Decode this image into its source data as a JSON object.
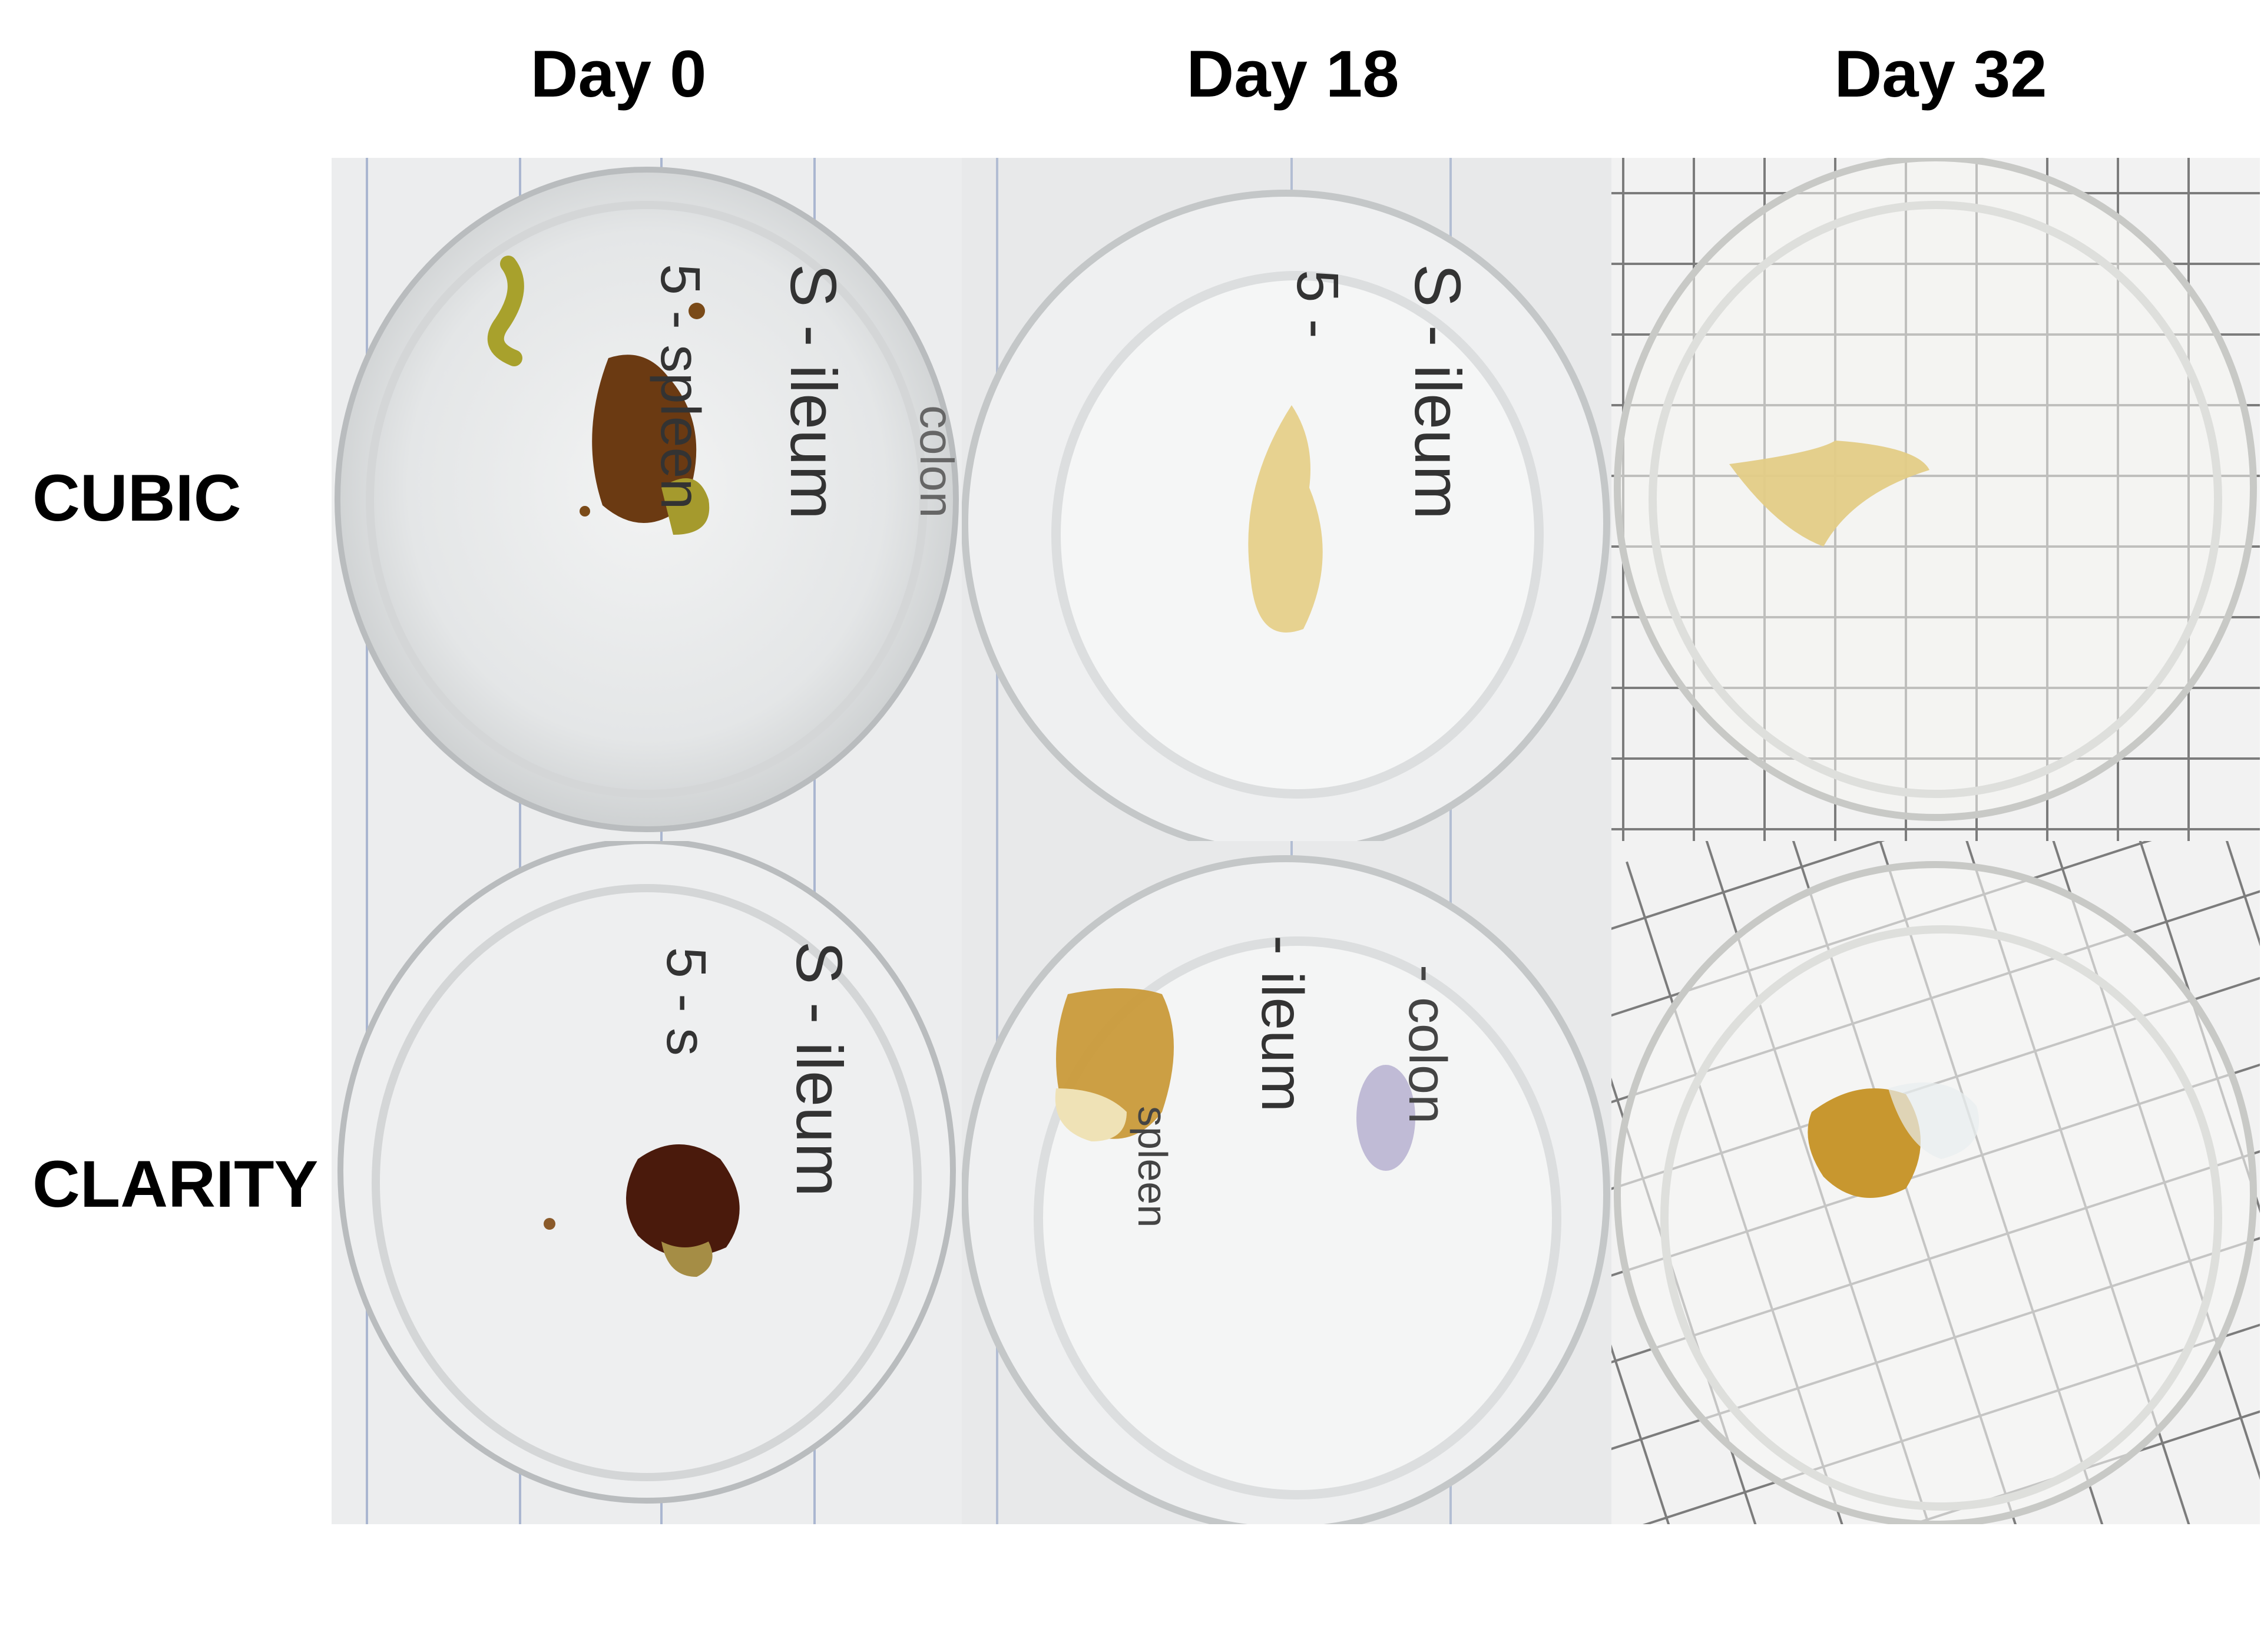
{
  "columns": [
    "Day 0",
    "Day 18",
    "Day 32"
  ],
  "rows": [
    "CUBIC",
    "CLARITY"
  ],
  "panels": [
    {
      "row": "CUBIC",
      "day": "Day 0",
      "paper": "lined",
      "tissue_color": "#6b3a12",
      "handwriting": [
        "S - ileum",
        "5 - spleen",
        "colon"
      ]
    },
    {
      "row": "CUBIC",
      "day": "Day 18",
      "paper": "lined",
      "tissue_color": "#e6d08a",
      "handwriting": [
        "S - ileum",
        "5 - "
      ]
    },
    {
      "row": "CUBIC",
      "day": "Day 32",
      "paper": "grid",
      "tissue_color": "#e3cc86"
    },
    {
      "row": "CLARITY",
      "day": "Day 0",
      "paper": "lined",
      "tissue_color": "#4a1a0c",
      "handwriting": [
        "S - ileum",
        "5 - s"
      ]
    },
    {
      "row": "CLARITY",
      "day": "Day 18",
      "paper": "lined",
      "tissue_color": "#c99a3a",
      "handwriting": [
        "- ileum",
        "- colon",
        "spleen"
      ]
    },
    {
      "row": "CLARITY",
      "day": "Day 32",
      "paper": "grid",
      "tissue_color": "#c8972f"
    }
  ]
}
